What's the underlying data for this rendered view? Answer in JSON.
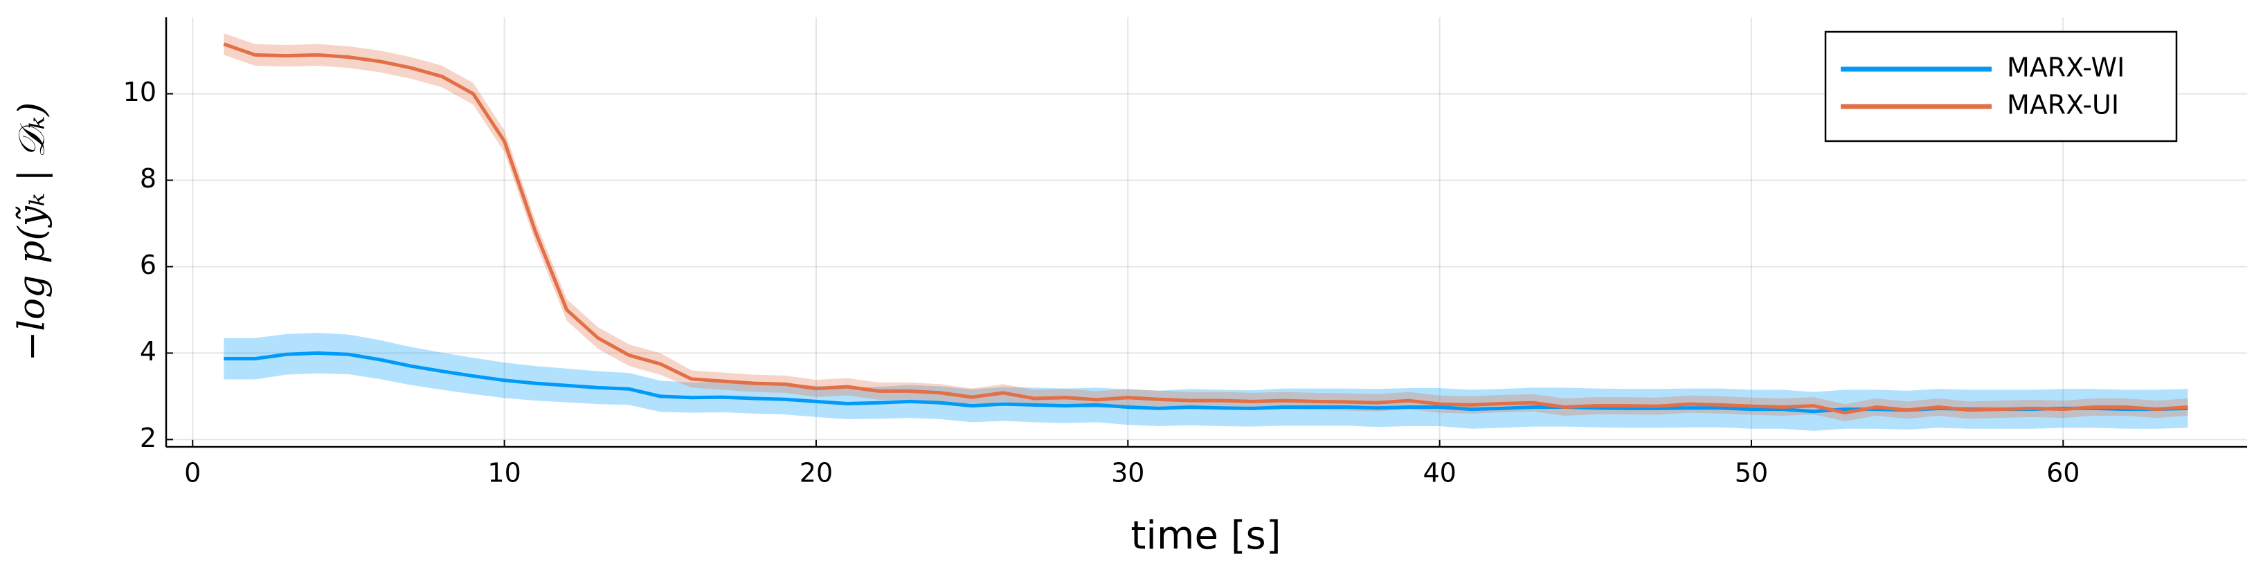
{
  "chart_data": {
    "type": "line",
    "xlabel": "time [s]",
    "ylabel": "−log p(ỹₖ | 𝒟ₖ)",
    "x": [
      1,
      2,
      3,
      4,
      5,
      6,
      7,
      8,
      9,
      10,
      11,
      12,
      13,
      14,
      15,
      16,
      17,
      18,
      19,
      20,
      21,
      22,
      23,
      24,
      25,
      26,
      27,
      28,
      29,
      30,
      31,
      32,
      33,
      34,
      35,
      36,
      37,
      38,
      39,
      40,
      41,
      42,
      43,
      44,
      45,
      46,
      47,
      48,
      49,
      50,
      51,
      52,
      53,
      54,
      55,
      56,
      57,
      58,
      59,
      60,
      61,
      62,
      63,
      64
    ],
    "series": [
      {
        "name": "MARX-WI",
        "color": "#009af9",
        "values": [
          3.87,
          3.87,
          3.97,
          4.0,
          3.97,
          3.85,
          3.7,
          3.58,
          3.47,
          3.37,
          3.3,
          3.25,
          3.2,
          3.17,
          3.0,
          2.97,
          2.98,
          2.95,
          2.93,
          2.88,
          2.83,
          2.85,
          2.88,
          2.85,
          2.78,
          2.82,
          2.8,
          2.78,
          2.8,
          2.75,
          2.72,
          2.75,
          2.73,
          2.72,
          2.75,
          2.75,
          2.75,
          2.73,
          2.75,
          2.75,
          2.7,
          2.72,
          2.75,
          2.75,
          2.73,
          2.72,
          2.72,
          2.73,
          2.73,
          2.7,
          2.7,
          2.65,
          2.7,
          2.7,
          2.68,
          2.72,
          2.7,
          2.7,
          2.7,
          2.72,
          2.72,
          2.7,
          2.7,
          2.72
        ],
        "errors": [
          0.48,
          0.48,
          0.47,
          0.47,
          0.46,
          0.45,
          0.44,
          0.43,
          0.42,
          0.41,
          0.4,
          0.39,
          0.38,
          0.37,
          0.36,
          0.35,
          0.35,
          0.35,
          0.35,
          0.36,
          0.36,
          0.37,
          0.38,
          0.38,
          0.38,
          0.39,
          0.4,
          0.4,
          0.4,
          0.41,
          0.41,
          0.42,
          0.42,
          0.42,
          0.43,
          0.43,
          0.43,
          0.44,
          0.44,
          0.44,
          0.45,
          0.45,
          0.45,
          0.45,
          0.45,
          0.45,
          0.45,
          0.45,
          0.45,
          0.45,
          0.45,
          0.45,
          0.45,
          0.45,
          0.45,
          0.45,
          0.45,
          0.45,
          0.45,
          0.45,
          0.45,
          0.45,
          0.45,
          0.45
        ]
      },
      {
        "name": "MARX-UI",
        "color": "#e26f46",
        "values": [
          11.15,
          10.9,
          10.88,
          10.9,
          10.85,
          10.75,
          10.6,
          10.4,
          10.0,
          8.9,
          6.8,
          5.0,
          4.35,
          3.95,
          3.75,
          3.4,
          3.35,
          3.3,
          3.28,
          3.18,
          3.22,
          3.12,
          3.12,
          3.08,
          2.98,
          3.08,
          2.95,
          2.97,
          2.92,
          2.97,
          2.93,
          2.9,
          2.9,
          2.88,
          2.9,
          2.88,
          2.87,
          2.85,
          2.9,
          2.82,
          2.8,
          2.83,
          2.85,
          2.75,
          2.78,
          2.78,
          2.77,
          2.82,
          2.8,
          2.77,
          2.75,
          2.78,
          2.62,
          2.75,
          2.68,
          2.75,
          2.68,
          2.7,
          2.72,
          2.7,
          2.75,
          2.75,
          2.7,
          2.75
        ],
        "errors": [
          0.25,
          0.25,
          0.25,
          0.25,
          0.25,
          0.25,
          0.25,
          0.25,
          0.25,
          0.25,
          0.25,
          0.25,
          0.25,
          0.25,
          0.25,
          0.2,
          0.2,
          0.2,
          0.2,
          0.2,
          0.2,
          0.2,
          0.2,
          0.2,
          0.2,
          0.2,
          0.2,
          0.2,
          0.2,
          0.2,
          0.2,
          0.2,
          0.2,
          0.2,
          0.2,
          0.2,
          0.2,
          0.2,
          0.2,
          0.2,
          0.2,
          0.2,
          0.2,
          0.2,
          0.2,
          0.2,
          0.2,
          0.2,
          0.2,
          0.2,
          0.2,
          0.2,
          0.2,
          0.2,
          0.2,
          0.2,
          0.2,
          0.2,
          0.2,
          0.2,
          0.2,
          0.2,
          0.2,
          0.2
        ]
      }
    ],
    "xlim": [
      -0.85,
      65.9
    ],
    "xticks": [
      0,
      10,
      20,
      30,
      40,
      50,
      60
    ],
    "ylim": [
      1.83,
      11.77
    ],
    "yticks": [
      2,
      4,
      6,
      8,
      10
    ],
    "grid": true,
    "legend": "top-right"
  }
}
